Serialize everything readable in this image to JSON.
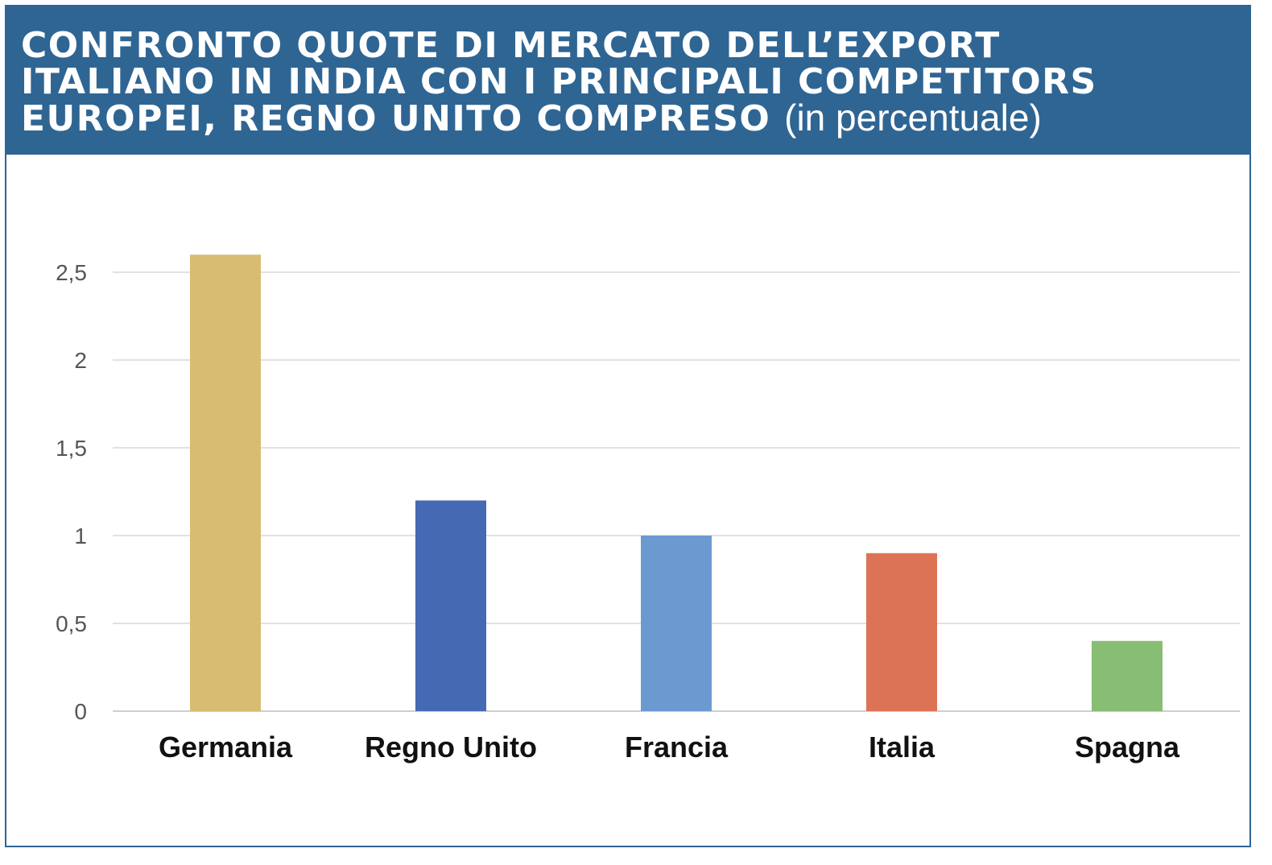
{
  "header": {
    "title_lines": [
      "CONFRONTO QUOTE DI MERCATO DELL’EXPORT",
      "ITALIANO IN INDIA CON I PRINCIPALI COMPETITORS",
      "EUROPEI, REGNO UNITO COMPRESO"
    ],
    "subtitle": "(in percentuale)"
  },
  "chart_data": {
    "type": "bar",
    "categories": [
      "Germania",
      "Regno Unito",
      "Francia",
      "Italia",
      "Spagna"
    ],
    "values": [
      2.6,
      1.2,
      1.0,
      0.9,
      0.4
    ],
    "colors": [
      "#d8bc72",
      "#4569b3",
      "#6b9ad0",
      "#dc7354",
      "#88bd74"
    ],
    "ylim": [
      0,
      2.5
    ],
    "yticks": [
      "0",
      "0,5",
      "1",
      "1,5",
      "2",
      "2,5"
    ],
    "grid": true,
    "title": "CONFRONTO QUOTE DI MERCATO DELL’EXPORT ITALIANO IN INDIA CON I PRINCIPALI COMPETITORS EUROPEI, REGNO UNITO COMPRESO",
    "subtitle": "(in percentuale)",
    "xlabel": "",
    "ylabel": ""
  }
}
